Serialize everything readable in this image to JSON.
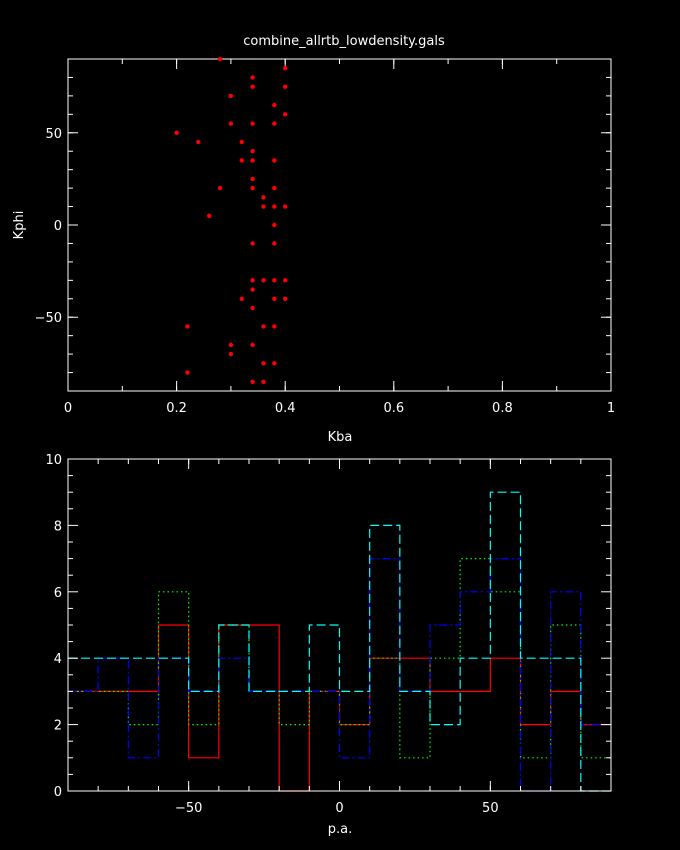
{
  "title": "combine_allrtb_lowdensity.gals",
  "colors": {
    "background": "#000000",
    "axes": "#ffffff",
    "points": "#ff0000",
    "series": [
      "#ff0000",
      "#00ff00",
      "#0000ff",
      "#00ffff"
    ]
  },
  "chart_data": [
    {
      "type": "scatter",
      "title": "combine_allrtb_lowdensity.gals",
      "xlabel": "Kba",
      "ylabel": "Kphi",
      "xlim": [
        0,
        1
      ],
      "ylim": [
        -90,
        90
      ],
      "xticks": [
        0,
        0.2,
        0.4,
        0.6,
        0.8,
        1
      ],
      "xtick_labels": [
        "0",
        "0.2",
        "0.4",
        "0.6",
        "0.8",
        "1"
      ],
      "yticks": [
        -50,
        0,
        50
      ],
      "ytick_labels": [
        "−50",
        "0",
        "50"
      ],
      "points": [
        [
          0.28,
          90
        ],
        [
          0.34,
          80
        ],
        [
          0.4,
          85
        ],
        [
          0.34,
          75
        ],
        [
          0.4,
          75
        ],
        [
          0.3,
          70
        ],
        [
          0.38,
          65
        ],
        [
          0.4,
          60
        ],
        [
          0.3,
          55
        ],
        [
          0.34,
          55
        ],
        [
          0.38,
          55
        ],
        [
          0.2,
          50
        ],
        [
          0.24,
          45
        ],
        [
          0.32,
          45
        ],
        [
          0.34,
          40
        ],
        [
          0.32,
          35
        ],
        [
          0.34,
          35
        ],
        [
          0.38,
          35
        ],
        [
          0.34,
          25
        ],
        [
          0.28,
          20
        ],
        [
          0.34,
          20
        ],
        [
          0.38,
          20
        ],
        [
          0.36,
          15
        ],
        [
          0.36,
          10
        ],
        [
          0.38,
          10
        ],
        [
          0.4,
          10
        ],
        [
          0.26,
          5
        ],
        [
          0.38,
          0
        ],
        [
          0.34,
          -10
        ],
        [
          0.38,
          -10
        ],
        [
          0.34,
          -30
        ],
        [
          0.36,
          -30
        ],
        [
          0.38,
          -30
        ],
        [
          0.4,
          -30
        ],
        [
          0.34,
          -35
        ],
        [
          0.32,
          -40
        ],
        [
          0.38,
          -40
        ],
        [
          0.4,
          -40
        ],
        [
          0.34,
          -45
        ],
        [
          0.22,
          -55
        ],
        [
          0.36,
          -55
        ],
        [
          0.38,
          -55
        ],
        [
          0.3,
          -65
        ],
        [
          0.34,
          -65
        ],
        [
          0.3,
          -70
        ],
        [
          0.36,
          -75
        ],
        [
          0.38,
          -75
        ],
        [
          0.22,
          -80
        ],
        [
          0.34,
          -85
        ],
        [
          0.36,
          -85
        ]
      ]
    },
    {
      "type": "histogram",
      "xlabel": "p.a.",
      "ylabel": "",
      "xlim": [
        -90,
        90
      ],
      "ylim": [
        0,
        10
      ],
      "xticks": [
        -50,
        0,
        50
      ],
      "xtick_labels": [
        "−50",
        "0",
        "50"
      ],
      "yticks": [
        0,
        2,
        4,
        6,
        8,
        10
      ],
      "ytick_labels": [
        "0",
        "2",
        "4",
        "6",
        "8",
        "10"
      ],
      "bin_edges": [
        -90,
        -80,
        -70,
        -60,
        -50,
        -40,
        -30,
        -20,
        -10,
        0,
        10,
        20,
        30,
        40,
        50,
        60,
        70,
        80,
        90
      ],
      "series": [
        {
          "style": "solid",
          "color": "#ff0000",
          "values": [
            3,
            3,
            3,
            5,
            1,
            5,
            5,
            0,
            3,
            2,
            4,
            4,
            3,
            3,
            4,
            2,
            3,
            2
          ]
        },
        {
          "style": "dotted",
          "color": "#00ff00",
          "values": [
            3,
            3,
            2,
            6,
            2,
            5,
            3,
            2,
            3,
            2,
            4,
            1,
            4,
            7,
            6,
            1,
            5,
            1
          ]
        },
        {
          "style": "dashdot",
          "color": "#0000ff",
          "values": [
            3,
            4,
            1,
            4,
            3,
            4,
            3,
            3,
            3,
            1,
            7,
            3,
            5,
            6,
            7,
            0,
            6,
            2
          ]
        },
        {
          "style": "longdash",
          "color": "#00ffff",
          "values": [
            4,
            4,
            4,
            4,
            3,
            5,
            3,
            3,
            5,
            3,
            8,
            3,
            2,
            4,
            9,
            4,
            4,
            0
          ]
        }
      ]
    }
  ]
}
